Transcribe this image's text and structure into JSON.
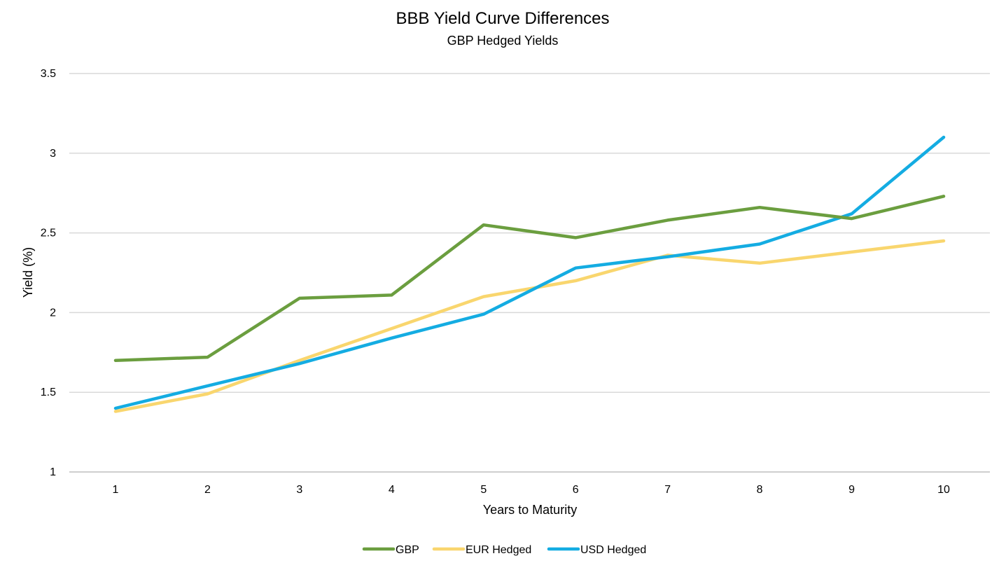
{
  "chart_data": {
    "type": "line",
    "title": "BBB Yield Curve Differences",
    "subtitle": "GBP Hedged Yields",
    "xlabel": "Years to Maturity",
    "ylabel": "Yield (%)",
    "categories": [
      "1",
      "2",
      "3",
      "4",
      "5",
      "6",
      "7",
      "8",
      "9",
      "10"
    ],
    "ylim": [
      1,
      3.5
    ],
    "yticks": [
      "1",
      "1.5",
      "2",
      "2.5",
      "3",
      "3.5"
    ],
    "grid": true,
    "legend_position": "bottom",
    "series": [
      {
        "name": "GBP",
        "color": "#6B9E3F",
        "values": [
          1.7,
          1.72,
          2.09,
          2.11,
          2.55,
          2.47,
          2.58,
          2.66,
          2.59,
          2.73
        ]
      },
      {
        "name": "EUR Hedged",
        "color": "#F9D66E",
        "values": [
          1.38,
          1.49,
          1.7,
          1.9,
          2.1,
          2.2,
          2.36,
          2.31,
          2.38,
          2.45
        ]
      },
      {
        "name": "USD Hedged",
        "color": "#14ACE2",
        "values": [
          1.4,
          1.54,
          1.68,
          1.84,
          1.99,
          2.28,
          2.35,
          2.43,
          2.62,
          3.1
        ]
      }
    ]
  }
}
